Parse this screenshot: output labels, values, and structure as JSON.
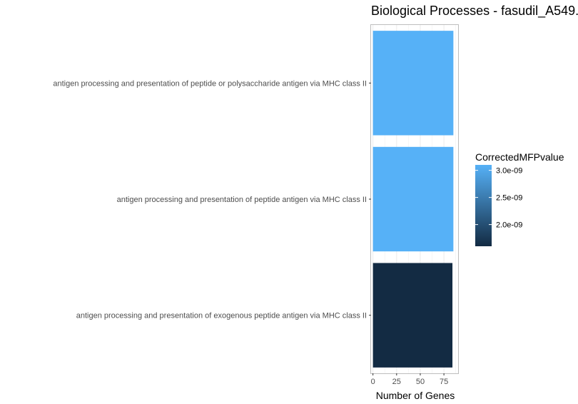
{
  "chart_data": {
    "type": "bar",
    "orientation": "horizontal",
    "title": "Biological Processes - fasudil_A549.",
    "xlabel": "Number of Genes",
    "ylabel": "",
    "xlim": [
      -2,
      90
    ],
    "xticks": [
      0,
      25,
      50,
      75
    ],
    "categories": [
      "antigen processing and presentation of peptide or polysaccharide antigen via MHC class II",
      "antigen processing and presentation of peptide antigen via MHC class II",
      "antigen processing and presentation of exogenous peptide antigen via MHC class II"
    ],
    "values": [
      85,
      85,
      84
    ],
    "color_values": [
      3.1e-09,
      3.1e-09,
      1.6e-09
    ],
    "grid": true,
    "legend": {
      "title": "CorrectedMFPvalue",
      "placement": "right",
      "range": [
        1.6e-09,
        3.1e-09
      ],
      "ticks": [
        3e-09,
        2.5e-09,
        2e-09
      ],
      "tick_labels": [
        "3.0e-09",
        "2.5e-09",
        "2.0e-09"
      ],
      "color_low": "#132B43",
      "color_high": "#56B1F7"
    }
  }
}
